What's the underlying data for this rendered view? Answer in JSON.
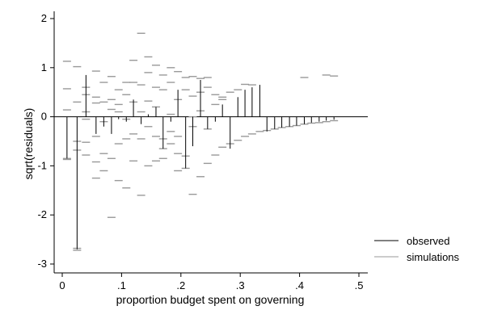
{
  "chart_data": {
    "type": "scatter",
    "title": "",
    "xlabel": "proportion budget spent on governing",
    "ylabel": "sqrt(residuals)",
    "xlim": [
      0,
      0.5
    ],
    "ylim": [
      -3,
      2
    ],
    "x_ticks": [
      0,
      0.1,
      0.2,
      0.3,
      0.4,
      0.5
    ],
    "x_tick_labels": [
      "0",
      ".1",
      ".2",
      ".3",
      ".4",
      ".5"
    ],
    "y_ticks": [
      -3,
      -2,
      -1,
      0,
      1,
      2
    ],
    "y_tick_labels": [
      "-3",
      "-2",
      "-1",
      "0",
      "1",
      "2"
    ],
    "grid": false,
    "legend_position": "bottom-right",
    "reference_line": 0,
    "series": [
      {
        "name": "observed",
        "style": "vertical spikes from zero",
        "color": "#000000",
        "points": [
          {
            "x": 0.008,
            "y": -0.85
          },
          {
            "x": 0.025,
            "y": -2.7
          },
          {
            "x": 0.04,
            "y": 0.85
          },
          {
            "x": 0.057,
            "y": -0.35
          },
          {
            "x": 0.07,
            "y": -0.2
          },
          {
            "x": 0.083,
            "y": -0.35
          },
          {
            "x": 0.095,
            "y": -0.05
          },
          {
            "x": 0.108,
            "y": -0.1
          },
          {
            "x": 0.12,
            "y": 0.35
          },
          {
            "x": 0.133,
            "y": -0.15
          },
          {
            "x": 0.145,
            "y": 0.05
          },
          {
            "x": 0.158,
            "y": 0.2
          },
          {
            "x": 0.17,
            "y": -0.65
          },
          {
            "x": 0.183,
            "y": -0.1
          },
          {
            "x": 0.195,
            "y": 0.55
          },
          {
            "x": 0.208,
            "y": -1.05
          },
          {
            "x": 0.22,
            "y": -0.6
          },
          {
            "x": 0.233,
            "y": 0.75
          },
          {
            "x": 0.245,
            "y": -0.25
          },
          {
            "x": 0.258,
            "y": -0.1
          },
          {
            "x": 0.27,
            "y": 0.25
          },
          {
            "x": 0.283,
            "y": -0.65
          },
          {
            "x": 0.296,
            "y": 0.4
          },
          {
            "x": 0.308,
            "y": 0.55
          },
          {
            "x": 0.32,
            "y": 0.6
          },
          {
            "x": 0.333,
            "y": 0.65
          },
          {
            "x": 0.345,
            "y": -0.3
          },
          {
            "x": 0.358,
            "y": -0.25
          },
          {
            "x": 0.37,
            "y": -0.22
          },
          {
            "x": 0.383,
            "y": -0.2
          },
          {
            "x": 0.395,
            "y": -0.18
          },
          {
            "x": 0.408,
            "y": -0.15
          },
          {
            "x": 0.42,
            "y": -0.12
          },
          {
            "x": 0.433,
            "y": -0.1
          },
          {
            "x": 0.445,
            "y": -0.08
          },
          {
            "x": 0.458,
            "y": -0.06
          }
        ]
      },
      {
        "name": "simulations",
        "style": "short horizontal dashes",
        "color": "#999999",
        "points": [
          {
            "x": 0.008,
            "y": 1.13
          },
          {
            "x": 0.008,
            "y": 0.57
          },
          {
            "x": 0.008,
            "y": 0.14
          },
          {
            "x": 0.008,
            "y": -0.85
          },
          {
            "x": 0.008,
            "y": -0.87
          },
          {
            "x": 0.025,
            "y": 1.02
          },
          {
            "x": 0.025,
            "y": 0.3
          },
          {
            "x": 0.025,
            "y": -0.5
          },
          {
            "x": 0.025,
            "y": -0.68
          },
          {
            "x": 0.025,
            "y": -2.68
          },
          {
            "x": 0.025,
            "y": -2.72
          },
          {
            "x": 0.04,
            "y": 0.6
          },
          {
            "x": 0.04,
            "y": 0.45
          },
          {
            "x": 0.04,
            "y": 0.1
          },
          {
            "x": 0.04,
            "y": -0.05
          },
          {
            "x": 0.04,
            "y": -0.52
          },
          {
            "x": 0.04,
            "y": -0.78
          },
          {
            "x": 0.057,
            "y": 0.93
          },
          {
            "x": 0.057,
            "y": 0.4
          },
          {
            "x": 0.057,
            "y": 0.28
          },
          {
            "x": 0.057,
            "y": -0.4
          },
          {
            "x": 0.057,
            "y": -0.92
          },
          {
            "x": 0.057,
            "y": -1.25
          },
          {
            "x": 0.07,
            "y": 0.7
          },
          {
            "x": 0.07,
            "y": 0.3
          },
          {
            "x": 0.07,
            "y": -0.1
          },
          {
            "x": 0.07,
            "y": -0.75
          },
          {
            "x": 0.07,
            "y": -1.1
          },
          {
            "x": 0.083,
            "y": 0.82
          },
          {
            "x": 0.083,
            "y": 0.35
          },
          {
            "x": 0.083,
            "y": 0.15
          },
          {
            "x": 0.083,
            "y": -0.85
          },
          {
            "x": 0.083,
            "y": -2.05
          },
          {
            "x": 0.095,
            "y": 0.55
          },
          {
            "x": 0.095,
            "y": 0.25
          },
          {
            "x": 0.095,
            "y": 0.1
          },
          {
            "x": 0.095,
            "y": -0.55
          },
          {
            "x": 0.095,
            "y": -1.3
          },
          {
            "x": 0.108,
            "y": 0.7
          },
          {
            "x": 0.108,
            "y": 0.45
          },
          {
            "x": 0.108,
            "y": -0.05
          },
          {
            "x": 0.108,
            "y": -0.45
          },
          {
            "x": 0.108,
            "y": -1.45
          },
          {
            "x": 0.12,
            "y": 1.15
          },
          {
            "x": 0.12,
            "y": 0.7
          },
          {
            "x": 0.12,
            "y": 0.3
          },
          {
            "x": 0.12,
            "y": -0.35
          },
          {
            "x": 0.12,
            "y": -0.9
          },
          {
            "x": 0.133,
            "y": 1.7
          },
          {
            "x": 0.133,
            "y": 0.65
          },
          {
            "x": 0.133,
            "y": 0.1
          },
          {
            "x": 0.133,
            "y": -0.45
          },
          {
            "x": 0.133,
            "y": -1.6
          },
          {
            "x": 0.145,
            "y": 1.22
          },
          {
            "x": 0.145,
            "y": 0.9
          },
          {
            "x": 0.145,
            "y": 0.32
          },
          {
            "x": 0.145,
            "y": -0.2
          },
          {
            "x": 0.145,
            "y": -1.0
          },
          {
            "x": 0.158,
            "y": 1.05
          },
          {
            "x": 0.158,
            "y": 0.6
          },
          {
            "x": 0.158,
            "y": 0.2
          },
          {
            "x": 0.158,
            "y": -0.4
          },
          {
            "x": 0.158,
            "y": -0.9
          },
          {
            "x": 0.17,
            "y": 0.85
          },
          {
            "x": 0.17,
            "y": 0.55
          },
          {
            "x": 0.17,
            "y": -0.45
          },
          {
            "x": 0.17,
            "y": -0.65
          },
          {
            "x": 0.17,
            "y": -0.85
          },
          {
            "x": 0.183,
            "y": 1.0
          },
          {
            "x": 0.183,
            "y": 0.7
          },
          {
            "x": 0.183,
            "y": 0.05
          },
          {
            "x": 0.183,
            "y": -0.3
          },
          {
            "x": 0.183,
            "y": -0.55
          },
          {
            "x": 0.195,
            "y": 0.92
          },
          {
            "x": 0.195,
            "y": 0.35
          },
          {
            "x": 0.195,
            "y": -0.4
          },
          {
            "x": 0.195,
            "y": -0.75
          },
          {
            "x": 0.195,
            "y": -1.1
          },
          {
            "x": 0.208,
            "y": 0.8
          },
          {
            "x": 0.208,
            "y": 0.55
          },
          {
            "x": 0.208,
            "y": -0.8
          },
          {
            "x": 0.208,
            "y": -1.05
          },
          {
            "x": 0.22,
            "y": 0.82
          },
          {
            "x": 0.22,
            "y": 0.42
          },
          {
            "x": 0.22,
            "y": 0.0
          },
          {
            "x": 0.22,
            "y": -0.2
          },
          {
            "x": 0.22,
            "y": -1.58
          },
          {
            "x": 0.233,
            "y": 0.78
          },
          {
            "x": 0.233,
            "y": 0.5
          },
          {
            "x": 0.233,
            "y": 0.12
          },
          {
            "x": 0.233,
            "y": -1.22
          },
          {
            "x": 0.245,
            "y": 0.8
          },
          {
            "x": 0.245,
            "y": 0.6
          },
          {
            "x": 0.245,
            "y": -0.25
          },
          {
            "x": 0.245,
            "y": -0.95
          },
          {
            "x": 0.258,
            "y": 0.45
          },
          {
            "x": 0.258,
            "y": 0.25
          },
          {
            "x": 0.258,
            "y": -0.78
          },
          {
            "x": 0.27,
            "y": 0.4
          },
          {
            "x": 0.27,
            "y": 0.35
          },
          {
            "x": 0.27,
            "y": -0.62
          },
          {
            "x": 0.283,
            "y": 0.5
          },
          {
            "x": 0.283,
            "y": -0.55
          },
          {
            "x": 0.296,
            "y": 0.55
          },
          {
            "x": 0.296,
            "y": -0.48
          },
          {
            "x": 0.308,
            "y": 0.66
          },
          {
            "x": 0.308,
            "y": -0.4
          },
          {
            "x": 0.32,
            "y": 0.65
          },
          {
            "x": 0.32,
            "y": -0.35
          },
          {
            "x": 0.333,
            "y": -0.3
          },
          {
            "x": 0.345,
            "y": -0.28
          },
          {
            "x": 0.358,
            "y": -0.25
          },
          {
            "x": 0.37,
            "y": -0.22
          },
          {
            "x": 0.383,
            "y": -0.2
          },
          {
            "x": 0.395,
            "y": -0.18
          },
          {
            "x": 0.408,
            "y": 0.8
          },
          {
            "x": 0.408,
            "y": -0.15
          },
          {
            "x": 0.42,
            "y": -0.13
          },
          {
            "x": 0.433,
            "y": -0.12
          },
          {
            "x": 0.445,
            "y": 0.85
          },
          {
            "x": 0.445,
            "y": -0.1
          },
          {
            "x": 0.458,
            "y": 0.83
          },
          {
            "x": 0.458,
            "y": -0.08
          }
        ]
      }
    ]
  }
}
